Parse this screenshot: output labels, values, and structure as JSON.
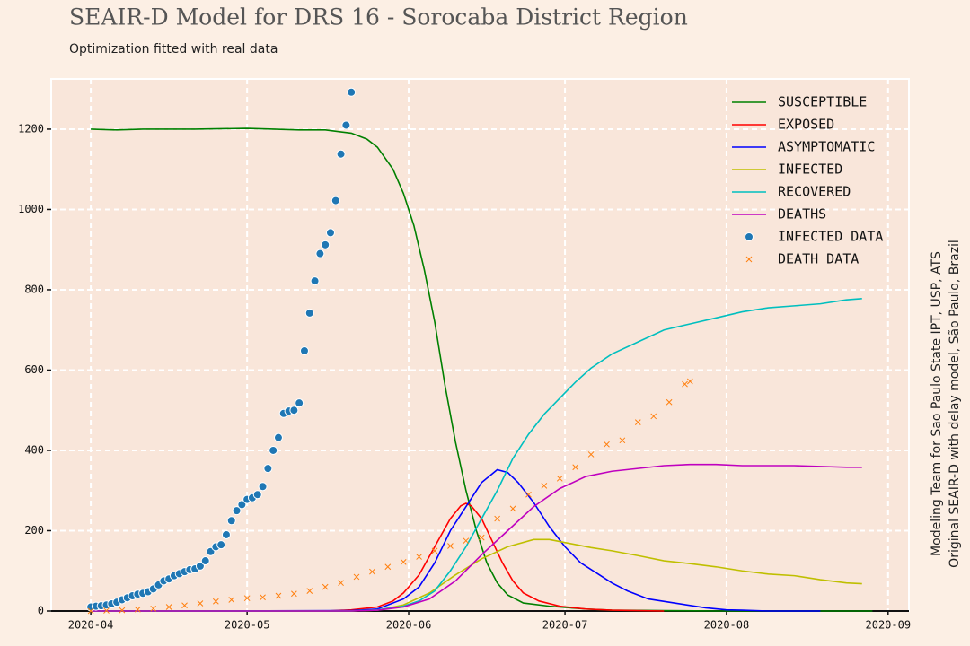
{
  "chart_data": {
    "type": "line",
    "title": "SEAIR-D Model for DRS 16 - Sorocaba District Region",
    "subtitle": "Optimization fitted with real data",
    "annotations": [
      "Modeling Team for Sao Paulo State IPT, USP, ATS",
      "Original SEAIR-D with delay model, São Paulo, Brazil"
    ],
    "xlim": [
      -7.6,
      157
    ],
    "ylim": [
      0,
      1325
    ],
    "xticks": [
      {
        "value": 0,
        "label": "2020-04"
      },
      {
        "value": 30,
        "label": "2020-05"
      },
      {
        "value": 61,
        "label": "2020-06"
      },
      {
        "value": 91,
        "label": "2020-07"
      },
      {
        "value": 122,
        "label": "2020-08"
      },
      {
        "value": 153,
        "label": "2020-09"
      }
    ],
    "yticks": [
      0,
      200,
      400,
      600,
      800,
      1000,
      1200
    ],
    "grid": true,
    "legend": "upper right",
    "series": [
      {
        "name": "SUSCEPTIBLE",
        "type": "line",
        "color": "#008000",
        "x": [
          0,
          5,
          10,
          20,
          30,
          40,
          45,
          50,
          53,
          55,
          58,
          60,
          62,
          64,
          66,
          68,
          70,
          72,
          74,
          76,
          78,
          80,
          83,
          88,
          95,
          100,
          110,
          120,
          130,
          140,
          150
        ],
        "values": [
          1200,
          1198,
          1200,
          1200,
          1202,
          1198,
          1198,
          1190,
          1175,
          1155,
          1100,
          1040,
          960,
          850,
          720,
          560,
          420,
          300,
          200,
          120,
          70,
          40,
          20,
          12,
          5,
          2,
          1,
          0,
          0,
          0,
          0
        ]
      },
      {
        "name": "EXPOSED",
        "type": "line",
        "color": "#ff0000",
        "x": [
          0,
          20,
          45,
          50,
          55,
          58,
          60,
          63,
          66,
          69,
          71,
          72,
          73,
          75,
          77,
          79,
          81,
          83,
          86,
          90,
          95,
          100,
          110
        ],
        "values": [
          0,
          0,
          0,
          3,
          10,
          25,
          45,
          90,
          160,
          230,
          262,
          268,
          262,
          230,
          175,
          120,
          75,
          45,
          25,
          12,
          5,
          2,
          0
        ]
      },
      {
        "name": "ASYMPTOMATIC",
        "type": "line",
        "color": "#0000ff",
        "x": [
          0,
          20,
          50,
          55,
          60,
          63,
          66,
          69,
          72,
          75,
          78,
          80,
          82,
          85,
          88,
          91,
          94,
          97,
          100,
          103,
          107,
          112,
          118,
          122,
          125,
          130,
          140
        ],
        "values": [
          0,
          0,
          1,
          5,
          30,
          60,
          120,
          200,
          260,
          320,
          352,
          345,
          320,
          270,
          210,
          160,
          120,
          95,
          70,
          50,
          30,
          20,
          8,
          3,
          2,
          0,
          0
        ]
      },
      {
        "name": "INFECTED",
        "type": "line",
        "color": "#bfbf00",
        "x": [
          0,
          20,
          50,
          55,
          60,
          65,
          70,
          75,
          80,
          85,
          88,
          92,
          96,
          100,
          105,
          110,
          115,
          120,
          125,
          130,
          135,
          140,
          145,
          148
        ],
        "values": [
          0,
          0,
          0,
          2,
          15,
          45,
          90,
          130,
          160,
          178,
          178,
          168,
          158,
          150,
          138,
          125,
          118,
          110,
          100,
          92,
          88,
          78,
          70,
          68
        ]
      },
      {
        "name": "RECOVERED",
        "type": "line",
        "color": "#00bfbf",
        "x": [
          0,
          20,
          50,
          55,
          60,
          63,
          66,
          69,
          72,
          75,
          78,
          81,
          84,
          87,
          90,
          93,
          96,
          100,
          105,
          110,
          115,
          120,
          125,
          130,
          135,
          140,
          145,
          148
        ],
        "values": [
          0,
          0,
          0,
          3,
          12,
          25,
          50,
          100,
          160,
          230,
          300,
          380,
          440,
          490,
          530,
          570,
          605,
          640,
          670,
          700,
          715,
          730,
          745,
          755,
          760,
          765,
          775,
          778
        ]
      },
      {
        "name": "DEATHS",
        "type": "line",
        "color": "#bf00bf",
        "x": [
          0,
          20,
          50,
          55,
          60,
          65,
          70,
          75,
          80,
          85,
          90,
          95,
          100,
          105,
          110,
          115,
          120,
          125,
          130,
          135,
          140,
          145,
          148
        ],
        "values": [
          0,
          0,
          0,
          2,
          10,
          30,
          75,
          140,
          200,
          260,
          305,
          335,
          348,
          355,
          362,
          365,
          365,
          362,
          362,
          362,
          360,
          358,
          358
        ]
      },
      {
        "name": "INFECTED DATA",
        "type": "scatter",
        "marker": "o",
        "color": "#1f77b4",
        "x": [
          0,
          1,
          2,
          3,
          4,
          5,
          6,
          7,
          8,
          9,
          10,
          11,
          12,
          13,
          14,
          15,
          16,
          17,
          18,
          19,
          20,
          21,
          22,
          23,
          24,
          25,
          26,
          27,
          28,
          29,
          30,
          31,
          32,
          33,
          34,
          35,
          36,
          37,
          38,
          39,
          40,
          41,
          42,
          43,
          44,
          45,
          46,
          47,
          48,
          49,
          50
        ],
        "values": [
          10,
          12,
          13,
          15,
          18,
          22,
          28,
          33,
          38,
          42,
          44,
          48,
          55,
          65,
          75,
          80,
          88,
          93,
          98,
          103,
          105,
          112,
          125,
          148,
          160,
          165,
          190,
          225,
          250,
          265,
          278,
          282,
          290,
          310,
          355,
          400,
          432,
          492,
          498,
          500,
          518,
          648,
          742,
          822,
          890,
          912,
          942,
          1022,
          1138,
          1210,
          1292
        ]
      },
      {
        "name": "DEATH DATA",
        "type": "scatter",
        "marker": "x",
        "color": "#ff7f0e",
        "x": [
          0,
          3,
          6,
          9,
          12,
          15,
          18,
          21,
          24,
          27,
          30,
          33,
          36,
          39,
          42,
          45,
          48,
          51,
          54,
          57,
          60,
          63,
          66,
          69,
          72,
          75,
          78,
          81,
          84,
          87,
          90,
          93,
          96,
          99,
          102,
          105,
          108,
          111,
          114,
          115
        ],
        "values": [
          0,
          1,
          2,
          4,
          6,
          10,
          14,
          19,
          24,
          28,
          32,
          34,
          38,
          43,
          50,
          60,
          70,
          85,
          98,
          110,
          122,
          135,
          150,
          162,
          175,
          183,
          230,
          255,
          290,
          312,
          330,
          358,
          390,
          415,
          425,
          470,
          485,
          520,
          565,
          572
        ]
      }
    ]
  }
}
